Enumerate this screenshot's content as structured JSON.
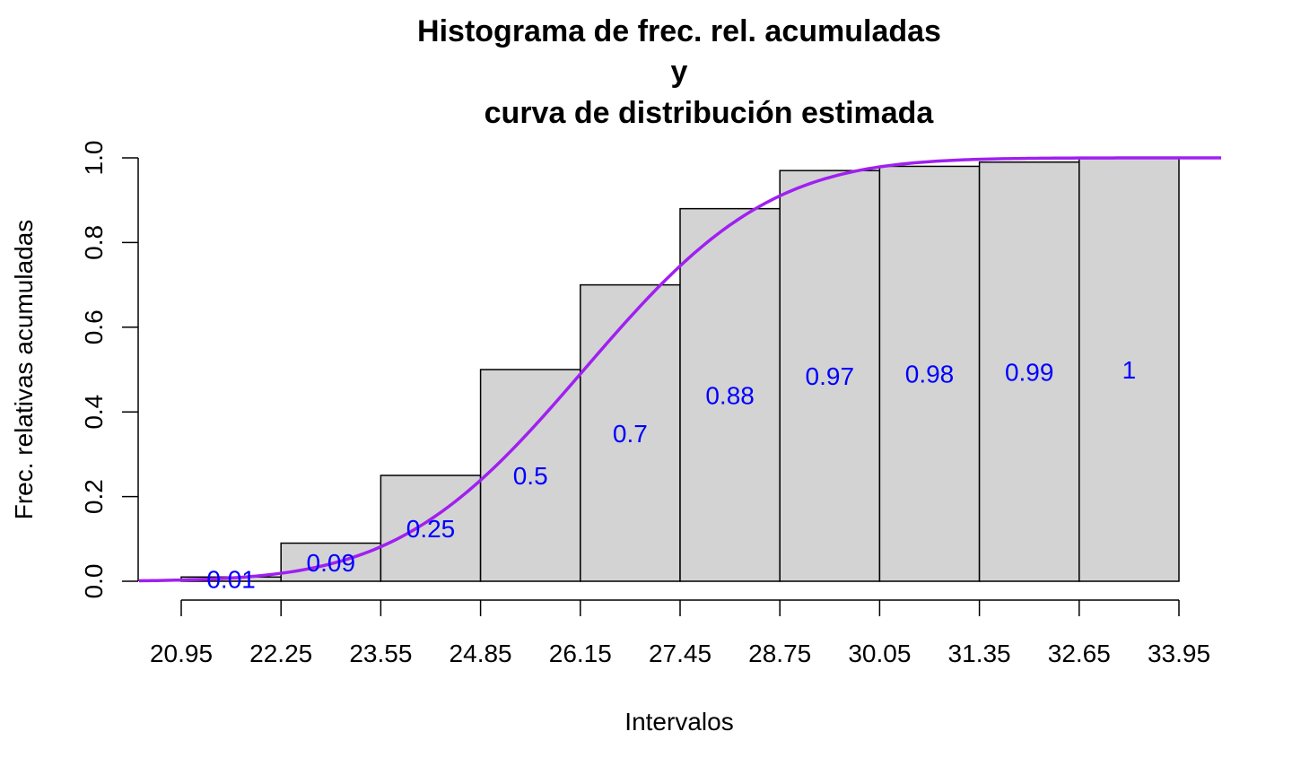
{
  "chart_data": {
    "type": "bar",
    "title_lines": [
      "Histograma de frec. rel. acumuladas",
      "y",
      "curva de distribución estimada"
    ],
    "xlabel": "Intervalos",
    "ylabel": "Frec. relativas acumuladas",
    "breaks": [
      20.95,
      22.25,
      23.55,
      24.85,
      26.15,
      27.45,
      28.75,
      30.05,
      31.35,
      32.65,
      33.95
    ],
    "x_tick_labels": [
      "20.95",
      "22.25",
      "23.55",
      "24.85",
      "26.15",
      "27.45",
      "28.75",
      "30.05",
      "31.35",
      "32.65",
      "33.95"
    ],
    "values": [
      0.01,
      0.09,
      0.25,
      0.5,
      0.7,
      0.88,
      0.97,
      0.98,
      0.99,
      1
    ],
    "value_labels": [
      "0.01",
      "0.09",
      "0.25",
      "0.5",
      "0.7",
      "0.88",
      "0.97",
      "0.98",
      "0.99",
      "1"
    ],
    "ylim": [
      0,
      1
    ],
    "y_ticks": [
      0,
      0.2,
      0.4,
      0.6,
      0.8,
      1
    ],
    "y_tick_labels": [
      "0.0",
      "0.2",
      "0.4",
      "0.6",
      "0.8",
      "1.0"
    ],
    "curve": {
      "type": "normal_cdf",
      "mean": 26.2,
      "sd": 1.9
    },
    "grid": false,
    "colors": {
      "bar_fill": "#d3d3d3",
      "bar_stroke": "#000000",
      "value_label": "#0000ff",
      "curve": "#a020f0"
    }
  }
}
